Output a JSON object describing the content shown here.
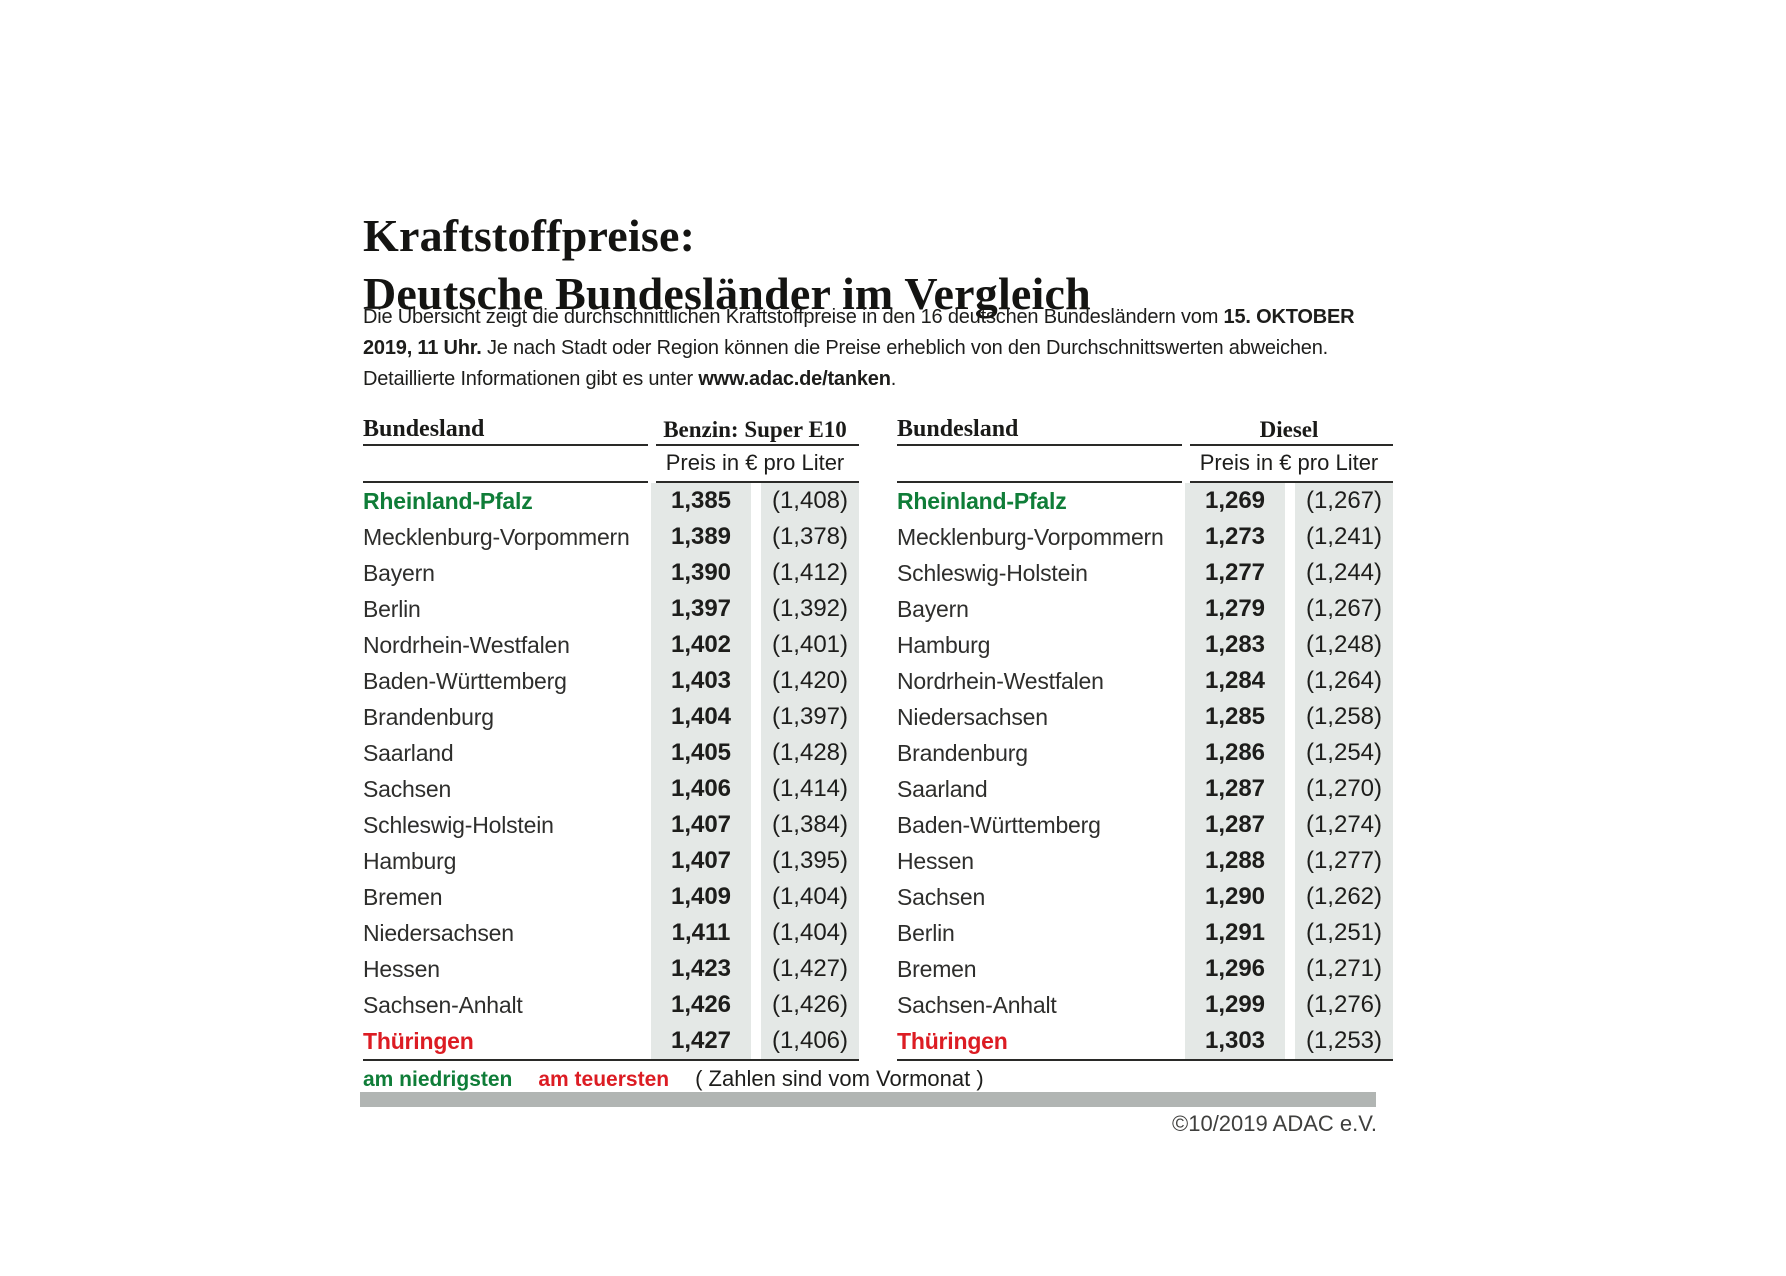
{
  "header": {
    "title_line1": "Kraftstoffpreise:",
    "title_line2": "Deutsche Bundesländer im Vergleich"
  },
  "intro": {
    "line1_text": "Die Übersicht zeigt die durchschnittlichen Kraftstoffpreise in den 16 deutschen Bundesländern vom ",
    "line1_bold": "15. OKTOBER",
    "line2_bold": "2019, 11 Uhr.",
    "line2_text": " Je nach Stadt oder Region können die Preise erheblich von den Durchschnittswerten abweichen.",
    "line3_text": "Detaillierte Informationen gibt es unter ",
    "line3_bold": "www.adac.de/tanken",
    "line3_period": "."
  },
  "tables": {
    "benzin": {
      "bundesland_header": "Bundesland",
      "fuel_header": "Benzin: Super E10",
      "price_unit_header": "Preis in € pro Liter",
      "rows": [
        {
          "state": "Rheinland-Pfalz",
          "price": "1,385",
          "prev": "(1,408)",
          "highlight": "lowest"
        },
        {
          "state": "Mecklenburg-Vorpommern",
          "price": "1,389",
          "prev": "(1,378)"
        },
        {
          "state": "Bayern",
          "price": "1,390",
          "prev": "(1,412)"
        },
        {
          "state": "Berlin",
          "price": "1,397",
          "prev": "(1,392)"
        },
        {
          "state": "Nordrhein-Westfalen",
          "price": "1,402",
          "prev": "(1,401)"
        },
        {
          "state": "Baden-Württemberg",
          "price": "1,403",
          "prev": "(1,420)"
        },
        {
          "state": "Brandenburg",
          "price": "1,404",
          "prev": "(1,397)"
        },
        {
          "state": "Saarland",
          "price": "1,405",
          "prev": "(1,428)"
        },
        {
          "state": "Sachsen",
          "price": "1,406",
          "prev": "(1,414)"
        },
        {
          "state": "Schleswig-Holstein",
          "price": "1,407",
          "prev": "(1,384)"
        },
        {
          "state": "Hamburg",
          "price": "1,407",
          "prev": "(1,395)"
        },
        {
          "state": "Bremen",
          "price": "1,409",
          "prev": "(1,404)"
        },
        {
          "state": "Niedersachsen",
          "price": "1,411",
          "prev": "(1,404)"
        },
        {
          "state": "Hessen",
          "price": "1,423",
          "prev": "(1,427)"
        },
        {
          "state": "Sachsen-Anhalt",
          "price": "1,426",
          "prev": "(1,426)"
        },
        {
          "state": "Thüringen",
          "price": "1,427",
          "prev": "(1,406)",
          "highlight": "highest"
        }
      ]
    },
    "diesel": {
      "bundesland_header": "Bundesland",
      "fuel_header": "Diesel",
      "price_unit_header": "Preis in € pro Liter",
      "rows": [
        {
          "state": "Rheinland-Pfalz",
          "price": "1,269",
          "prev": "(1,267)",
          "highlight": "lowest"
        },
        {
          "state": "Mecklenburg-Vorpommern",
          "price": "1,273",
          "prev": "(1,241)"
        },
        {
          "state": "Schleswig-Holstein",
          "price": "1,277",
          "prev": "(1,244)"
        },
        {
          "state": "Bayern",
          "price": "1,279",
          "prev": "(1,267)"
        },
        {
          "state": "Hamburg",
          "price": "1,283",
          "prev": "(1,248)"
        },
        {
          "state": "Nordrhein-Westfalen",
          "price": "1,284",
          "prev": "(1,264)"
        },
        {
          "state": "Niedersachsen",
          "price": "1,285",
          "prev": "(1,258)"
        },
        {
          "state": "Brandenburg",
          "price": "1,286",
          "prev": "(1,254)"
        },
        {
          "state": "Saarland",
          "price": "1,287",
          "prev": "(1,270)"
        },
        {
          "state": "Baden-Württemberg",
          "price": "1,287",
          "prev": "(1,274)"
        },
        {
          "state": "Hessen",
          "price": "1,288",
          "prev": "(1,277)"
        },
        {
          "state": "Sachsen",
          "price": "1,290",
          "prev": "(1,262)"
        },
        {
          "state": "Berlin",
          "price": "1,291",
          "prev": "(1,251)"
        },
        {
          "state": "Bremen",
          "price": "1,296",
          "prev": "(1,271)"
        },
        {
          "state": "Sachsen-Anhalt",
          "price": "1,299",
          "prev": "(1,276)"
        },
        {
          "state": "Thüringen",
          "price": "1,303",
          "prev": "(1,253)",
          "highlight": "highest"
        }
      ]
    }
  },
  "legend": {
    "lowest_label": "am niedrigsten",
    "highest_label": "am teuersten",
    "note": "( Zahlen sind vom Vormonat )"
  },
  "footer": {
    "copyright": "©10/2019 ADAC e.V."
  },
  "colors": {
    "lowest_green": "#0f7d38",
    "highest_red": "#dc1c23",
    "price_column_shade": "#e4e8e6",
    "divider_bar_gray": "#b1b5b3"
  },
  "chart_data": [
    {
      "type": "table",
      "title": "Benzin: Super E10",
      "columns": [
        "Bundesland",
        "Preis in € pro Liter",
        "Preis in € pro Liter (Vormonat)"
      ],
      "rows": [
        [
          "Rheinland-Pfalz",
          1.385,
          1.408
        ],
        [
          "Mecklenburg-Vorpommern",
          1.389,
          1.378
        ],
        [
          "Bayern",
          1.39,
          1.412
        ],
        [
          "Berlin",
          1.397,
          1.392
        ],
        [
          "Nordrhein-Westfalen",
          1.402,
          1.401
        ],
        [
          "Baden-Württemberg",
          1.403,
          1.42
        ],
        [
          "Brandenburg",
          1.404,
          1.397
        ],
        [
          "Saarland",
          1.405,
          1.428
        ],
        [
          "Sachsen",
          1.406,
          1.414
        ],
        [
          "Schleswig-Holstein",
          1.407,
          1.384
        ],
        [
          "Hamburg",
          1.407,
          1.395
        ],
        [
          "Bremen",
          1.409,
          1.404
        ],
        [
          "Niedersachsen",
          1.411,
          1.404
        ],
        [
          "Hessen",
          1.423,
          1.427
        ],
        [
          "Sachsen-Anhalt",
          1.426,
          1.426
        ],
        [
          "Thüringen",
          1.427,
          1.406
        ]
      ],
      "annotations": {
        "lowest": "Rheinland-Pfalz",
        "highest": "Thüringen"
      }
    },
    {
      "type": "table",
      "title": "Diesel",
      "columns": [
        "Bundesland",
        "Preis in € pro Liter",
        "Preis in € pro Liter (Vormonat)"
      ],
      "rows": [
        [
          "Rheinland-Pfalz",
          1.269,
          1.267
        ],
        [
          "Mecklenburg-Vorpommern",
          1.273,
          1.241
        ],
        [
          "Schleswig-Holstein",
          1.277,
          1.244
        ],
        [
          "Bayern",
          1.279,
          1.267
        ],
        [
          "Hamburg",
          1.283,
          1.248
        ],
        [
          "Nordrhein-Westfalen",
          1.284,
          1.264
        ],
        [
          "Niedersachsen",
          1.285,
          1.258
        ],
        [
          "Brandenburg",
          1.286,
          1.254
        ],
        [
          "Saarland",
          1.287,
          1.27
        ],
        [
          "Baden-Württemberg",
          1.287,
          1.274
        ],
        [
          "Hessen",
          1.288,
          1.277
        ],
        [
          "Sachsen",
          1.29,
          1.262
        ],
        [
          "Berlin",
          1.291,
          1.251
        ],
        [
          "Bremen",
          1.296,
          1.271
        ],
        [
          "Sachsen-Anhalt",
          1.299,
          1.276
        ],
        [
          "Thüringen",
          1.303,
          1.253
        ]
      ],
      "annotations": {
        "lowest": "Rheinland-Pfalz",
        "highest": "Thüringen"
      }
    }
  ]
}
